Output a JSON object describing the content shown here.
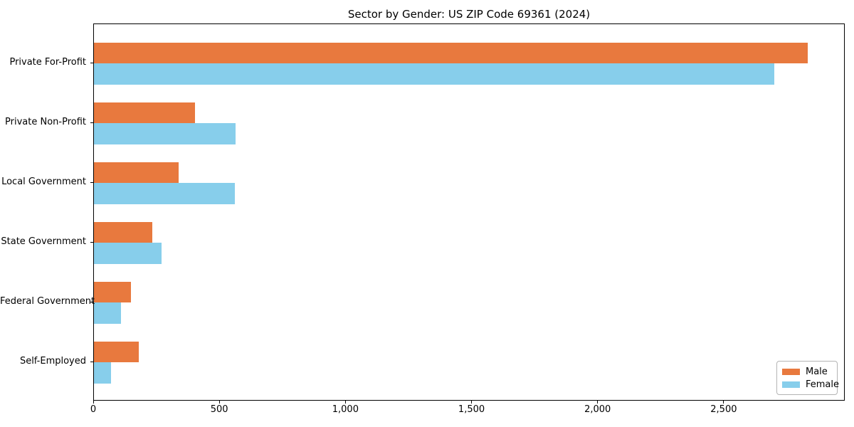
{
  "title": "Sector by Gender: US ZIP Code 69361 (2024)",
  "chart_data": {
    "type": "bar",
    "orientation": "horizontal",
    "title": "Sector by Gender: US ZIP Code 69361 (2024)",
    "xlabel": "",
    "ylabel": "",
    "categories": [
      "Private For-Profit",
      "Private Non-Profit",
      "Local Government",
      "State Government",
      "Federal Government",
      "Self-Employed"
    ],
    "series": [
      {
        "name": "Male",
        "color": "#e8793e",
        "values": [
          2831,
          402,
          336,
          232,
          147,
          178
        ]
      },
      {
        "name": "Female",
        "color": "#87ceeb",
        "values": [
          2697,
          561,
          559,
          269,
          107,
          69
        ]
      }
    ],
    "xlim": [
      0,
      2980
    ],
    "xticks": [
      0,
      500,
      1000,
      1500,
      2000,
      2500
    ],
    "xtick_labels": [
      "0",
      "500",
      "1,000",
      "1,500",
      "2,000",
      "2,500"
    ],
    "grid": false,
    "legend_position": "lower right",
    "legend_entries": [
      "Male",
      "Female"
    ]
  }
}
